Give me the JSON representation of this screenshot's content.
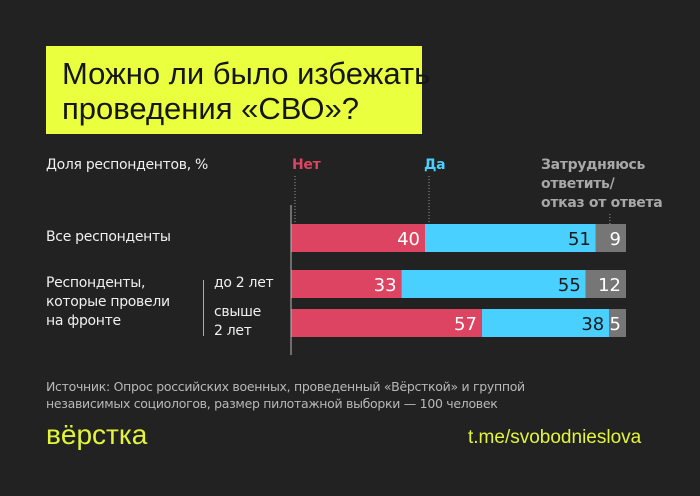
{
  "title": {
    "line1": "Можно ли было избежать",
    "line2": "проведения «СВО»?"
  },
  "chart_data": {
    "type": "bar",
    "orientation": "horizontal",
    "stacked": true,
    "ylabel": "Доля респондентов, %",
    "xlim": [
      0,
      100
    ],
    "categories": [
      "Все респонденты",
      "до 2 лет",
      "свыше 2 лет"
    ],
    "group_label": "Респонденты, которые провели на фронте",
    "group_sublabels": {
      "line1": "Респонденты,",
      "line2": "которые провели",
      "line3": "на фронте"
    },
    "category_lines": {
      "under2": "до 2 лет",
      "over2_line1": "свыше",
      "over2_line2": "2 лет"
    },
    "series": [
      {
        "name": "Нет",
        "color": "#dc4462",
        "values": [
          40,
          33,
          57
        ]
      },
      {
        "name": "Да",
        "color": "#4ad0ff",
        "values": [
          51,
          55,
          38
        ]
      },
      {
        "name": "Затрудняюсь ответить/ отказ от ответа",
        "name_lines": [
          "Затрудняюсь",
          "ответить/",
          "отказ от ответа"
        ],
        "color": "#767676",
        "values": [
          9,
          12,
          5
        ]
      }
    ],
    "label_colors": [
      "#ffffff",
      "#1a1a1a",
      "#ffffff"
    ],
    "grid": false,
    "legend": "top"
  },
  "source": {
    "line1": "Источник: Опрос российских военных, проведенный «Вёрсткой» и группой",
    "line2": "независимых социологов, размер пилотажной выборки — 100 человек"
  },
  "footer": {
    "logo": "вёрстка",
    "link": "t.me/svobodnieslova"
  },
  "colors": {
    "background": "#222222",
    "accent": "#eaff3d"
  }
}
